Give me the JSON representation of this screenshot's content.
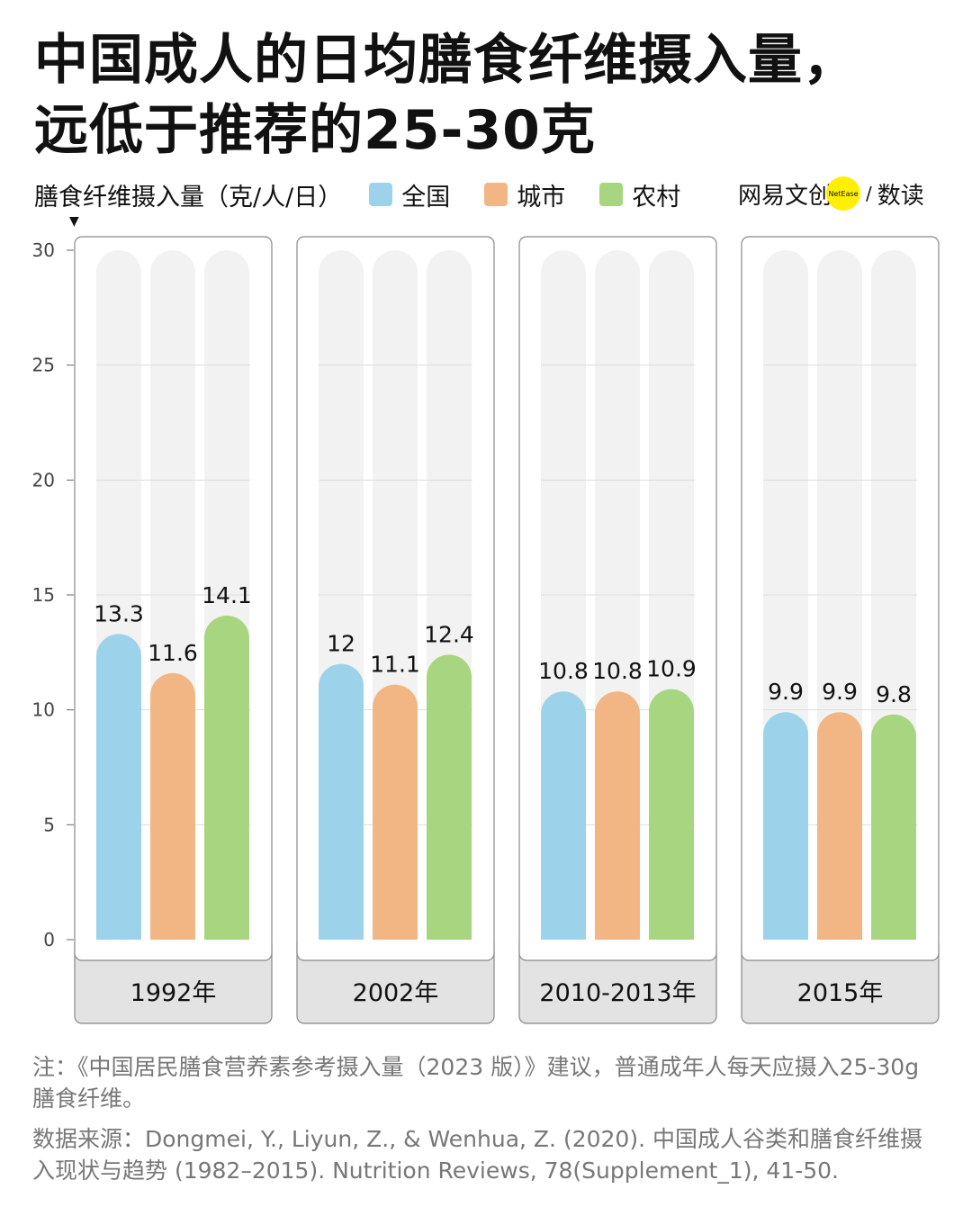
{
  "title_lines": [
    "中国成人的日均膳食纤维摄入量，",
    "远低于推荐的25-30克"
  ],
  "logo": {
    "text": "网易文创",
    "badge": "NetEase",
    "slash": "/",
    "suffix": "数读"
  },
  "note": "注：《中国居民膳食营养素参考摄入量（2023 版）》建议，普通成年人每天应摄入25-30g 膳食纤维。",
  "source": "数据来源：Dongmei, Y., Liyun, Z., & Wenhua, Z. (2020). 中国成人谷类和膳食纤维摄入现状与趋势 (1982–2015). Nutrition Reviews, 78(Supplement_1), 41-50.",
  "chart_data": {
    "type": "bar",
    "ylabel": "膳食纤维摄入量（克/人/日）",
    "ylim": [
      0,
      30
    ],
    "yticks": [
      0,
      5,
      10,
      15,
      20,
      25,
      30
    ],
    "grid": true,
    "legend_placement": "top",
    "categories": [
      "1992年",
      "2002年",
      "2010-2013年",
      "2015年"
    ],
    "series": [
      {
        "name": "全国",
        "color": "#9dd3ea",
        "values": [
          13.3,
          12,
          10.8,
          9.9
        ]
      },
      {
        "name": "城市",
        "color": "#f2b584",
        "values": [
          11.6,
          11.1,
          10.8,
          9.9
        ]
      },
      {
        "name": "农村",
        "color": "#a8d57f",
        "values": [
          14.1,
          12.4,
          10.9,
          9.8
        ]
      }
    ],
    "track_color": "#f2f2f2"
  }
}
